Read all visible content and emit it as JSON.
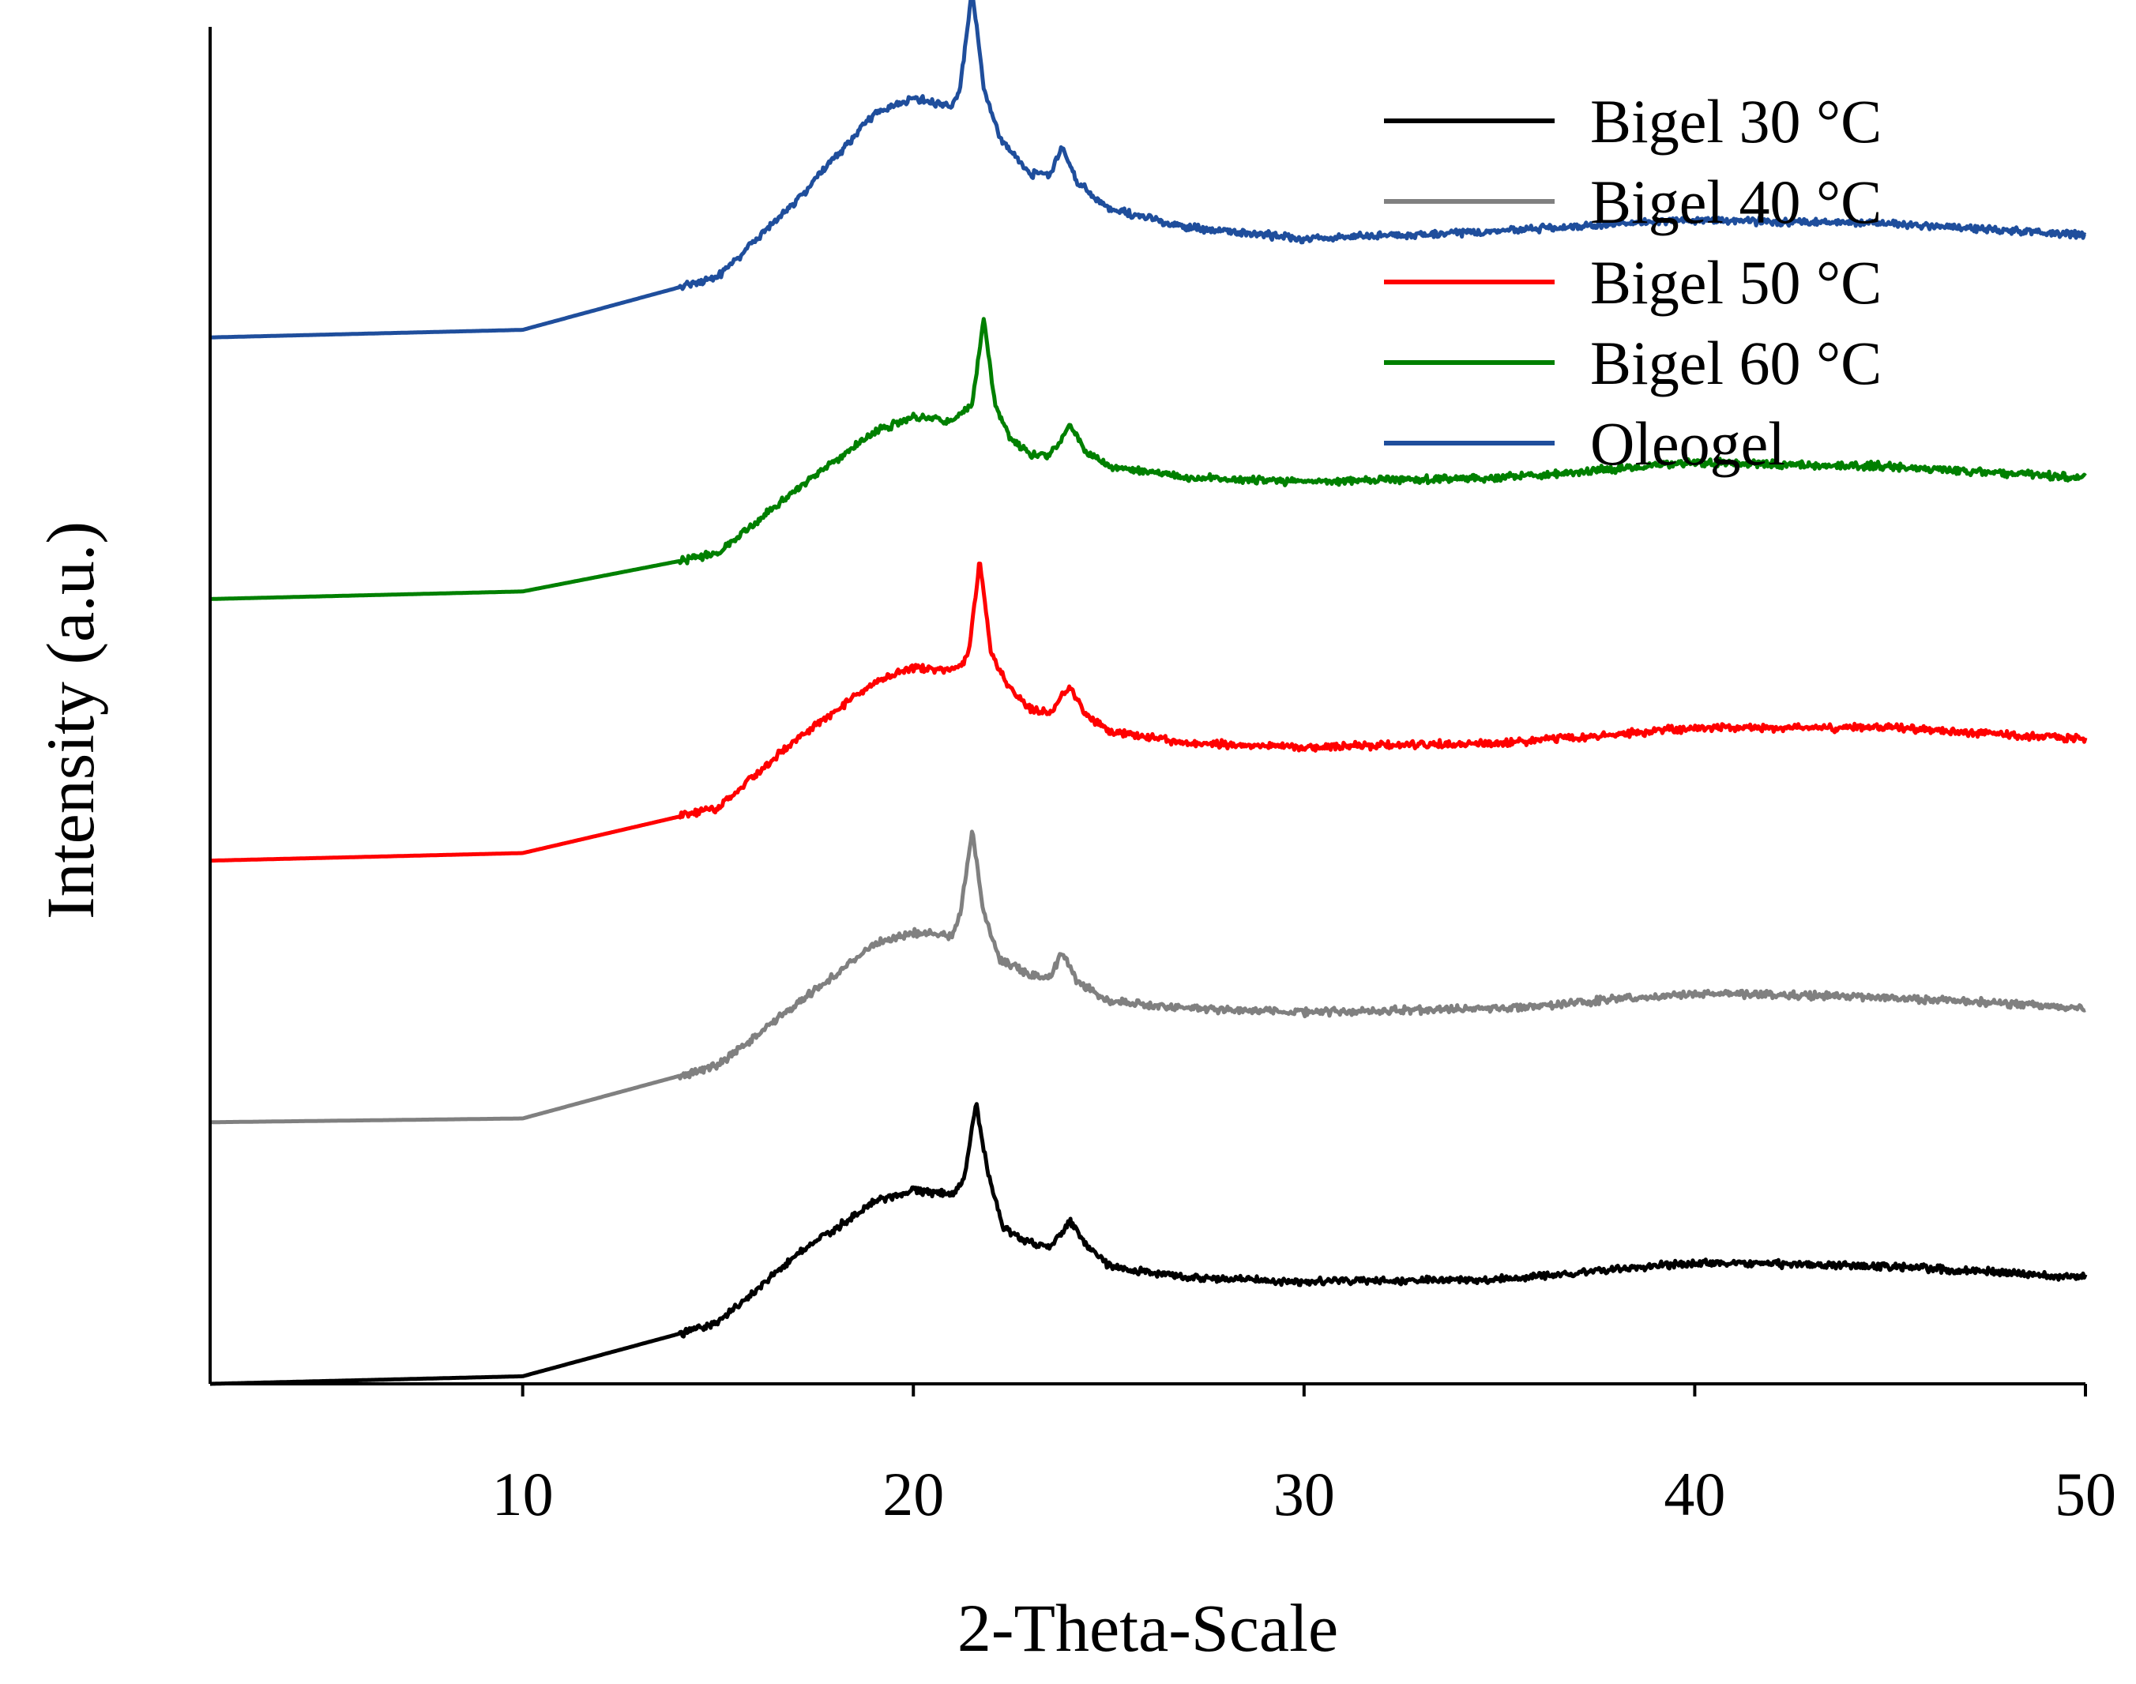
{
  "chart_data": {
    "type": "line",
    "title": "",
    "xlabel": "2-Theta-Scale",
    "ylabel": "Intensity (a.u.)",
    "xlim": [
      2,
      50
    ],
    "xticks": [
      10,
      20,
      30,
      40,
      50
    ],
    "xtick_labels": [
      "10",
      "20",
      "30",
      "40",
      "50"
    ],
    "yticks_shown": false,
    "grid": false,
    "legend_position": "top-right",
    "series": [
      {
        "name": "Bigel 30 °C",
        "color": "#000000",
        "x": [
          2,
          10,
          15,
          17,
          19,
          20,
          21,
          21.3,
          21.6,
          21.9,
          22.3,
          23,
          23.5,
          24,
          24.4,
          25,
          27,
          30,
          35,
          40,
          45,
          50
        ],
        "y": [
          0.0,
          0.1,
          0.8,
          1.7,
          2.4,
          2.55,
          2.5,
          2.7,
          3.7,
          2.8,
          2.05,
          1.85,
          1.8,
          2.15,
          1.85,
          1.55,
          1.4,
          1.35,
          1.38,
          1.6,
          1.55,
          1.4
        ]
      },
      {
        "name": "Bigel 40 °C",
        "color": "#808080",
        "x": [
          2,
          10,
          15,
          17,
          19,
          20,
          21,
          21.2,
          21.5,
          21.8,
          22.2,
          23,
          23.5,
          23.8,
          24.2,
          25,
          27,
          30,
          35,
          40,
          45,
          50
        ],
        "y": [
          3.45,
          3.5,
          4.2,
          5.0,
          5.8,
          5.95,
          5.9,
          6.2,
          7.3,
          6.2,
          5.6,
          5.4,
          5.35,
          5.7,
          5.3,
          5.05,
          4.95,
          4.9,
          4.95,
          5.15,
          5.1,
          4.95
        ]
      },
      {
        "name": "Bigel 50 °C",
        "color": "#ff0000",
        "x": [
          2,
          10,
          15,
          17,
          19,
          20,
          21,
          21.4,
          21.7,
          22,
          22.5,
          23,
          23.5,
          24,
          24.4,
          25,
          27,
          30,
          35,
          40,
          45,
          50
        ],
        "y": [
          6.9,
          7.0,
          7.6,
          8.5,
          9.25,
          9.45,
          9.4,
          9.6,
          10.85,
          9.6,
          9.15,
          8.9,
          8.85,
          9.2,
          8.85,
          8.6,
          8.45,
          8.4,
          8.45,
          8.65,
          8.65,
          8.5
        ]
      },
      {
        "name": "Bigel 60 °C",
        "color": "#008000",
        "x": [
          2,
          10,
          15,
          17,
          19,
          20,
          21,
          21.5,
          21.8,
          22.1,
          22.5,
          23,
          23.5,
          24,
          24.4,
          25,
          27,
          30,
          35,
          40,
          45,
          50
        ],
        "y": [
          10.35,
          10.45,
          10.95,
          11.8,
          12.55,
          12.75,
          12.7,
          12.9,
          14.05,
          12.9,
          12.45,
          12.25,
          12.25,
          12.65,
          12.3,
          12.1,
          11.95,
          11.9,
          11.95,
          12.15,
          12.1,
          11.95
        ]
      },
      {
        "name": "Oleogel",
        "color": "#1f4e9c",
        "x": [
          2,
          10,
          15,
          17,
          19,
          20,
          21,
          21.2,
          21.5,
          21.8,
          22.2,
          23,
          23.5,
          23.8,
          24.2,
          25,
          27,
          30,
          35,
          40,
          45,
          50
        ],
        "y": [
          13.8,
          13.9,
          14.6,
          15.6,
          16.75,
          16.95,
          16.85,
          17.1,
          18.4,
          17.1,
          16.45,
          15.95,
          15.95,
          16.3,
          15.85,
          15.5,
          15.25,
          15.1,
          15.2,
          15.35,
          15.3,
          15.15
        ]
      }
    ]
  }
}
